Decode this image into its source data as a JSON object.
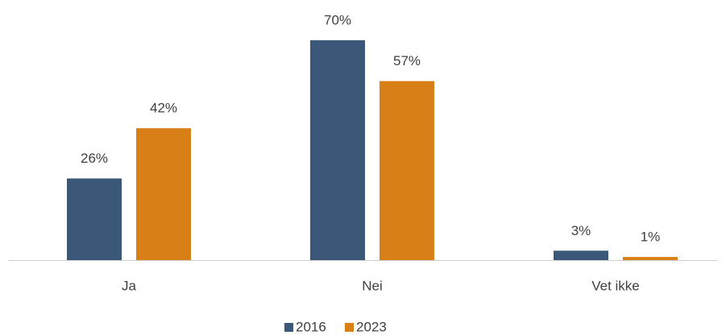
{
  "chart_data": {
    "type": "bar",
    "categories": [
      "Ja",
      "Nei",
      "Vet ikke"
    ],
    "series": [
      {
        "name": "2016",
        "color": "#3b5878",
        "values": [
          26,
          70,
          3
        ],
        "value_labels": [
          "26%",
          "70%",
          "3%"
        ]
      },
      {
        "name": "2023",
        "color": "#d97f17",
        "values": [
          42,
          57,
          1
        ],
        "value_labels": [
          "42%",
          "57%",
          "1%"
        ]
      }
    ],
    "legend": "bottom"
  }
}
